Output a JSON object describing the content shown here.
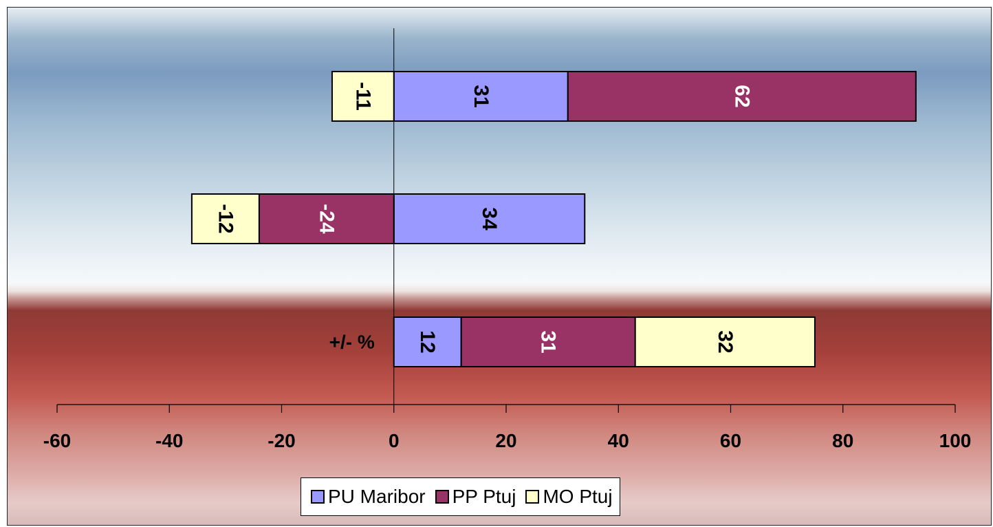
{
  "chart_data": {
    "type": "bar",
    "orientation": "horizontal",
    "stacked": true,
    "categories": [
      "",
      "",
      "+/- %"
    ],
    "xlim": [
      -60,
      100
    ],
    "xticks": [
      -60,
      -40,
      -20,
      0,
      20,
      40,
      60,
      80,
      100
    ],
    "series": [
      {
        "name": "PU Maribor",
        "color": "#9999ff",
        "values": [
          31,
          34,
          12
        ]
      },
      {
        "name": "PP Ptuj",
        "color": "#993366",
        "values": [
          62,
          -24,
          31
        ]
      },
      {
        "name": "MO Ptuj",
        "color": "#ffffcc",
        "values": [
          -11,
          -12,
          32
        ]
      }
    ],
    "legend_position": "bottom",
    "grid": false
  }
}
